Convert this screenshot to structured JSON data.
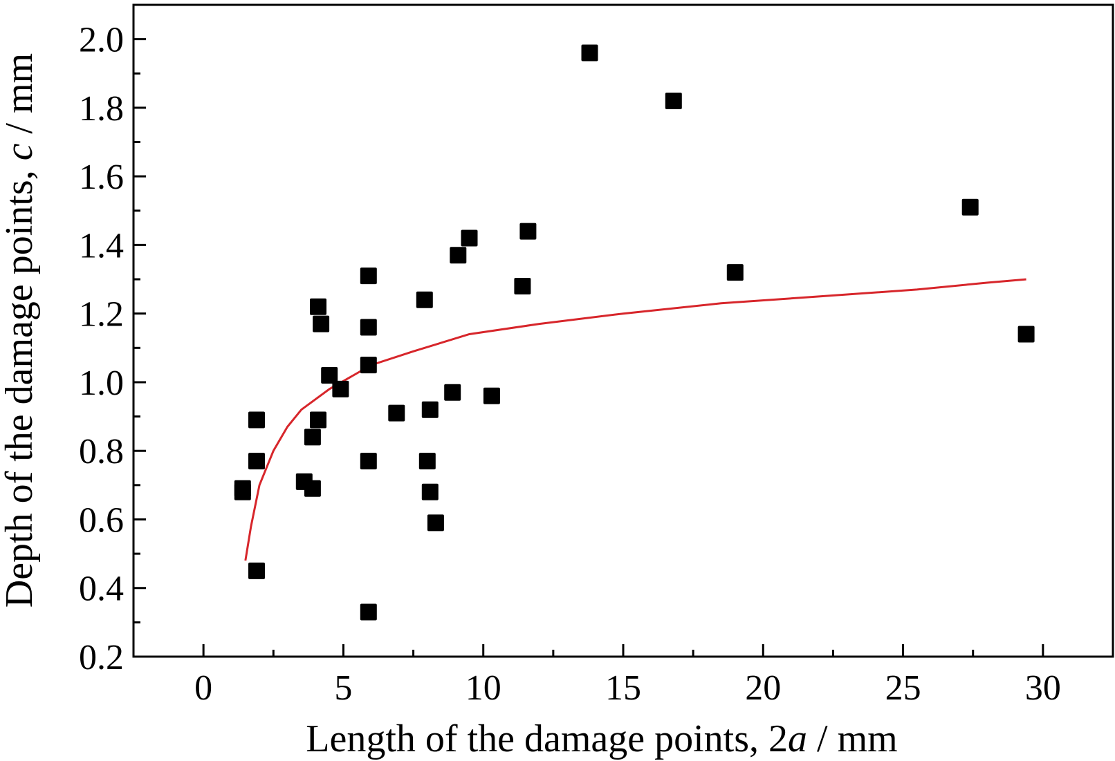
{
  "chart_data": {
    "type": "scatter",
    "title": "",
    "xlabel": {
      "prefix": "Length of the damage points, 2",
      "var": "a",
      "suffix": " / mm"
    },
    "ylabel": {
      "prefix": "Depth of the damage points, ",
      "var": "c",
      "suffix": " / mm"
    },
    "xlim": [
      -2.5,
      32.5
    ],
    "ylim": [
      0.2,
      2.1
    ],
    "xticks": [
      0,
      5,
      10,
      15,
      20,
      25,
      30
    ],
    "xtick_labels": [
      "0",
      "5",
      "10",
      "15",
      "20",
      "25",
      "30"
    ],
    "yticks": [
      0.2,
      0.4,
      0.6,
      0.8,
      1.0,
      1.2,
      1.4,
      1.6,
      1.8,
      2.0
    ],
    "ytick_labels": [
      "0.2",
      "0.4",
      "0.6",
      "0.8",
      "1.0",
      "1.2",
      "1.4",
      "1.6",
      "1.8",
      "2.0"
    ],
    "grid": false,
    "marker_color": "#000000",
    "fit_color": "#d7262b",
    "series": [
      {
        "type": "scatter",
        "points": [
          [
            1.4,
            0.68
          ],
          [
            1.4,
            0.69
          ],
          [
            1.9,
            0.89
          ],
          [
            1.9,
            0.77
          ],
          [
            1.9,
            0.45
          ],
          [
            3.6,
            0.71
          ],
          [
            3.9,
            0.84
          ],
          [
            3.9,
            0.69
          ],
          [
            4.1,
            1.22
          ],
          [
            4.1,
            0.89
          ],
          [
            4.2,
            1.17
          ],
          [
            4.5,
            1.02
          ],
          [
            4.9,
            0.98
          ],
          [
            5.9,
            1.31
          ],
          [
            5.9,
            1.16
          ],
          [
            5.9,
            1.05
          ],
          [
            5.9,
            0.77
          ],
          [
            5.9,
            0.33
          ],
          [
            6.9,
            0.91
          ],
          [
            7.9,
            1.24
          ],
          [
            8.0,
            0.77
          ],
          [
            8.1,
            0.92
          ],
          [
            8.1,
            0.68
          ],
          [
            8.3,
            0.59
          ],
          [
            8.9,
            0.97
          ],
          [
            9.1,
            1.37
          ],
          [
            9.5,
            1.42
          ],
          [
            10.3,
            0.96
          ],
          [
            11.4,
            1.28
          ],
          [
            11.6,
            1.44
          ],
          [
            13.8,
            1.96
          ],
          [
            16.8,
            1.82
          ],
          [
            19.0,
            1.32
          ],
          [
            27.4,
            1.51
          ],
          [
            29.4,
            1.14
          ]
        ]
      },
      {
        "type": "line",
        "points": [
          [
            1.5,
            0.48
          ],
          [
            1.7,
            0.58
          ],
          [
            2.0,
            0.7
          ],
          [
            2.5,
            0.8
          ],
          [
            3.0,
            0.87
          ],
          [
            3.5,
            0.92
          ],
          [
            4.5,
            0.98
          ],
          [
            6.0,
            1.05
          ],
          [
            7.5,
            1.09
          ],
          [
            9.5,
            1.14
          ],
          [
            12.0,
            1.17
          ],
          [
            15.0,
            1.2
          ],
          [
            18.5,
            1.23
          ],
          [
            22.0,
            1.25
          ],
          [
            25.5,
            1.27
          ],
          [
            28.0,
            1.29
          ],
          [
            29.4,
            1.3
          ]
        ]
      }
    ]
  }
}
